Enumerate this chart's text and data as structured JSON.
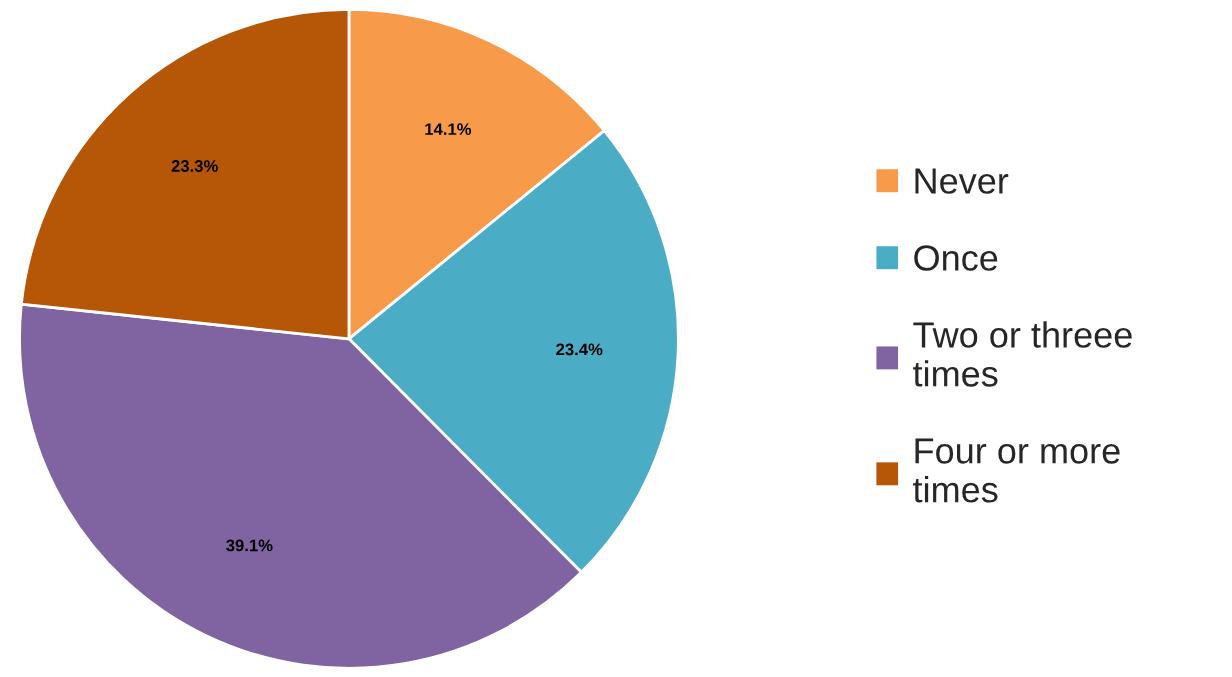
{
  "chart_data": {
    "type": "pie",
    "categories": [
      "Never",
      "Once",
      "Two or threee times",
      "Four or more times"
    ],
    "values": [
      14.1,
      23.4,
      39.1,
      23.3
    ],
    "colors": [
      "#f79a4a",
      "#4bacc6",
      "#8064a2",
      "#b65708"
    ],
    "value_labels": [
      "14.1%",
      "23.4%",
      "39.1%",
      "23.3%"
    ],
    "legend": "right"
  }
}
